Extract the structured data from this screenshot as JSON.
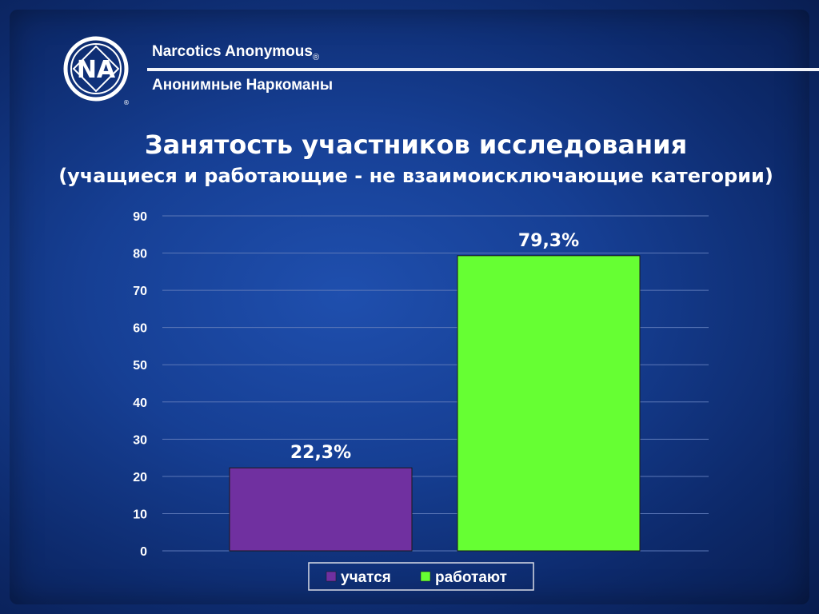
{
  "header": {
    "org_en": "Narcotics Anonymous",
    "registered_mark": "®",
    "org_ru": "Анонимные Наркоманы",
    "logo_letters": "NA",
    "logo_mark": "®"
  },
  "colors": {
    "background": "#163f94",
    "bar_study": "#7030a0",
    "bar_work": "#66ff33",
    "gridline": "#5c78b8"
  },
  "chart_data": {
    "type": "bar",
    "title": "Занятость участников исследования",
    "subtitle": "(учащиеся и работающие - не взаимоисключающие категории)",
    "ylim": [
      0,
      90
    ],
    "yticks": [
      "0",
      "10",
      "20",
      "30",
      "40",
      "50",
      "60",
      "70",
      "80",
      "90"
    ],
    "grid": true,
    "legend_position": "bottom",
    "series": [
      {
        "name": "учатся",
        "values": [
          22.3
        ],
        "label": "22,3%",
        "color": "#7030a0"
      },
      {
        "name": "работают",
        "values": [
          79.3
        ],
        "label": "79,3%",
        "color": "#66ff33"
      }
    ]
  }
}
